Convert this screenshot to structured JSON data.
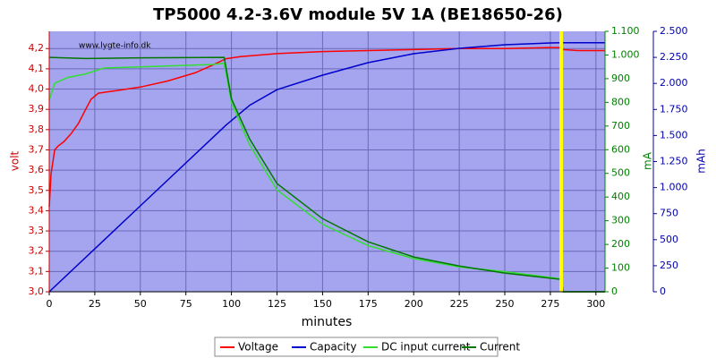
{
  "chart_data": {
    "type": "line",
    "title": "TP5000 4.2-3.6V module 5V 1A (BE18650-26)",
    "watermark": "www.lygte-info.dk",
    "xlabel": "minutes",
    "ylabel": "volt",
    "y2label": "mA",
    "y3label": "mAh",
    "xlim": [
      0,
      305
    ],
    "xticks": [
      0,
      25,
      50,
      75,
      100,
      125,
      150,
      175,
      200,
      225,
      250,
      275,
      300
    ],
    "ylim": [
      3.0,
      4.285
    ],
    "yticks": [
      {
        "value": 3.0,
        "label": "3,0"
      },
      {
        "value": 3.1,
        "label": "3,1"
      },
      {
        "value": 3.2,
        "label": "3,2"
      },
      {
        "value": 3.3,
        "label": "3,3"
      },
      {
        "value": 3.4,
        "label": "3,4"
      },
      {
        "value": 3.5,
        "label": "3,5"
      },
      {
        "value": 3.6,
        "label": "3,6"
      },
      {
        "value": 3.7,
        "label": "3,7"
      },
      {
        "value": 3.8,
        "label": "3,8"
      },
      {
        "value": 3.9,
        "label": "3,9"
      },
      {
        "value": 4.0,
        "label": "4,0"
      },
      {
        "value": 4.1,
        "label": "4,1"
      },
      {
        "value": 4.2,
        "label": "4,2"
      }
    ],
    "y2lim": [
      0,
      1100
    ],
    "y2ticks": [
      0,
      100,
      200,
      300,
      400,
      500,
      600,
      700,
      800,
      900,
      {
        "value": 1000,
        "label": "1.000"
      },
      {
        "value": 1100,
        "label": "1.100"
      }
    ],
    "y3lim": [
      0,
      2500
    ],
    "y3ticks": [
      0,
      250,
      500,
      750,
      {
        "value": 1000,
        "label": "1.000"
      },
      {
        "value": 1250,
        "label": "1.250"
      },
      {
        "value": 1500,
        "label": "1.500"
      },
      {
        "value": 1750,
        "label": "1.750"
      },
      {
        "value": 2000,
        "label": "2.000"
      },
      {
        "value": 2250,
        "label": "2.250"
      },
      {
        "value": 2500,
        "label": "2.500"
      }
    ],
    "grid": true,
    "vline": {
      "x": 281,
      "color": "#ffff00"
    },
    "series": [
      {
        "name": "Voltage",
        "color": "#ff0000",
        "axis": "y",
        "x": [
          0,
          1,
          3,
          5,
          8,
          12,
          16,
          20,
          23,
          27,
          35,
          50,
          65,
          80,
          90,
          97,
          105,
          125,
          150,
          175,
          200,
          225,
          250,
          275,
          280,
          282,
          290,
          305
        ],
        "values": [
          3.42,
          3.58,
          3.7,
          3.72,
          3.74,
          3.78,
          3.83,
          3.9,
          3.95,
          3.98,
          3.99,
          4.01,
          4.04,
          4.08,
          4.12,
          4.15,
          4.16,
          4.175,
          4.185,
          4.19,
          4.195,
          4.2,
          4.2,
          4.205,
          4.205,
          4.195,
          4.19,
          4.19
        ]
      },
      {
        "name": "Capacity",
        "color": "#0000cc",
        "axis": "y3",
        "x": [
          0,
          50,
          97,
          110,
          125,
          150,
          175,
          200,
          225,
          250,
          275,
          281,
          305
        ],
        "values": [
          0,
          825,
          1600,
          1790,
          1940,
          2079,
          2199,
          2285,
          2337,
          2371,
          2388,
          2390,
          2390
        ]
      },
      {
        "name": "DC input current",
        "color": "#33dd33",
        "axis": "y2",
        "x": [
          0,
          3,
          10,
          20,
          30,
          50,
          70,
          90,
          96,
          100,
          110,
          125,
          150,
          175,
          200,
          225,
          250,
          280,
          281,
          282,
          305
        ],
        "values": [
          810,
          880,
          905,
          920,
          945,
          950,
          955,
          960,
          965,
          800,
          620,
          430,
          285,
          195,
          140,
          105,
          85,
          55,
          55,
          0,
          0
        ]
      },
      {
        "name": "Current",
        "color": "#007700",
        "axis": "y2",
        "x": [
          0,
          20,
          50,
          96,
          100,
          110,
          125,
          150,
          175,
          200,
          225,
          250,
          280,
          281,
          282,
          305
        ],
        "values": [
          990,
          985,
          988,
          990,
          815,
          645,
          457,
          309,
          211,
          147,
          109,
          79,
          53,
          53,
          0,
          0
        ]
      }
    ]
  }
}
